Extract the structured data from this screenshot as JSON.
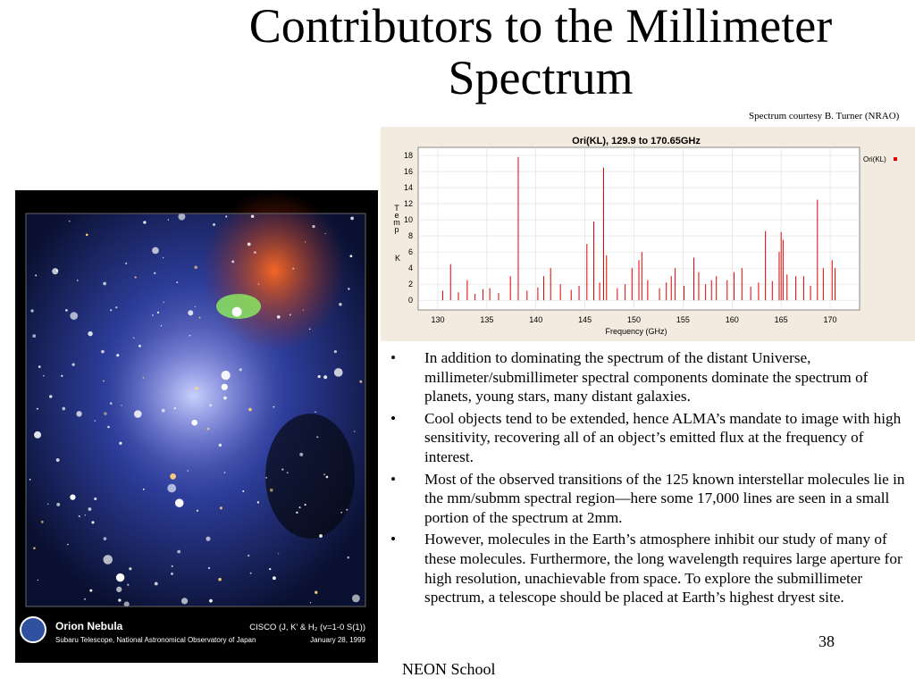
{
  "slide": {
    "title": "Contributors to the Millimeter Spectrum",
    "credit": "Spectrum courtesy B. Turner  (NRAO)",
    "image": {
      "name": "Orion Nebula",
      "source": "Subaru Telescope, National Astronomical Observatory of Japan",
      "instrument": "CISCO (J, K’ & H₂ (v=1-0 S(1))",
      "date": "January 28, 1999"
    },
    "bullets": [
      "In addition to dominating the spectrum of the distant Universe, millimeter/submillimeter spectral components dominate the spectrum of planets, young stars, many distant galaxies.",
      "Cool objects tend to be extended, hence ALMA’s mandate to image with high sensitivity, recovering all of an object’s emitted flux at the frequency of interest.",
      "Most of the observed transitions of the 125 known interstellar molecules lie in the mm/submm spectral region—here some 17,000 lines are seen in a small portion of the spectrum at 2mm.",
      "However, molecules in the Earth’s atmosphere inhibit our study of many of these molecules.  Furthermore, the long wavelength requires large aperture for high resolution, unachievable from space.  To explore the submillimeter spectrum, a telescope should be placed at Earth’s highest dryest site."
    ],
    "bullet_symbol": "•",
    "page_number": "38",
    "footer": "NEON School"
  },
  "chart_data": {
    "type": "stem",
    "title": "Ori(KL), 129.9 to 170.65GHz",
    "x_label": "Frequency (GHz)",
    "y_label": "Temp",
    "y_unit": "K",
    "series": [
      {
        "name": "Ori(KL)",
        "color": "#e00000",
        "x": [
          130.5,
          131.3,
          132.1,
          133,
          133.8,
          134.6,
          135.3,
          136.2,
          137.4,
          138.2,
          139.1,
          140.2,
          140.8,
          141.5,
          142.5,
          143.6,
          144.4,
          145.2,
          145.9,
          146.5,
          146.9,
          147.2,
          148.3,
          149.1,
          149.8,
          150.5,
          150.8,
          151.4,
          152.6,
          153.3,
          153.8,
          154.2,
          155.1,
          156.1,
          156.6,
          157.3,
          157.9,
          158.4,
          159.5,
          160.2,
          161,
          161.9,
          162.7,
          163.4,
          164.1,
          164.8,
          165,
          165.2,
          165.6,
          166.5,
          167.3,
          168,
          168.7,
          169.3,
          170.2,
          170.5
        ],
        "values": [
          1.2,
          4.5,
          1,
          2.5,
          0.8,
          1.4,
          1.5,
          0.9,
          3,
          17.8,
          1.2,
          1.6,
          3,
          4,
          2,
          1.3,
          1.8,
          7,
          9.8,
          2.2,
          16.5,
          5.6,
          1.5,
          2,
          4,
          5,
          6,
          2.5,
          1.5,
          2.2,
          3,
          4,
          1.8,
          5.3,
          3.5,
          2,
          2.5,
          3,
          2.5,
          3.5,
          4,
          1.7,
          2.2,
          8.6,
          2.4,
          6,
          8.5,
          7.5,
          3.2,
          3,
          3,
          1.8,
          12.5,
          4,
          5,
          4
        ]
      }
    ],
    "xlim": [
      128,
      173
    ],
    "ylim": [
      -1.2,
      19
    ],
    "xticks": [
      130,
      135,
      140,
      145,
      150,
      155,
      160,
      165,
      170
    ],
    "yticks": [
      0,
      2,
      4,
      6,
      8,
      10,
      12,
      14,
      16,
      18
    ],
    "grid": true,
    "legend": "right"
  }
}
